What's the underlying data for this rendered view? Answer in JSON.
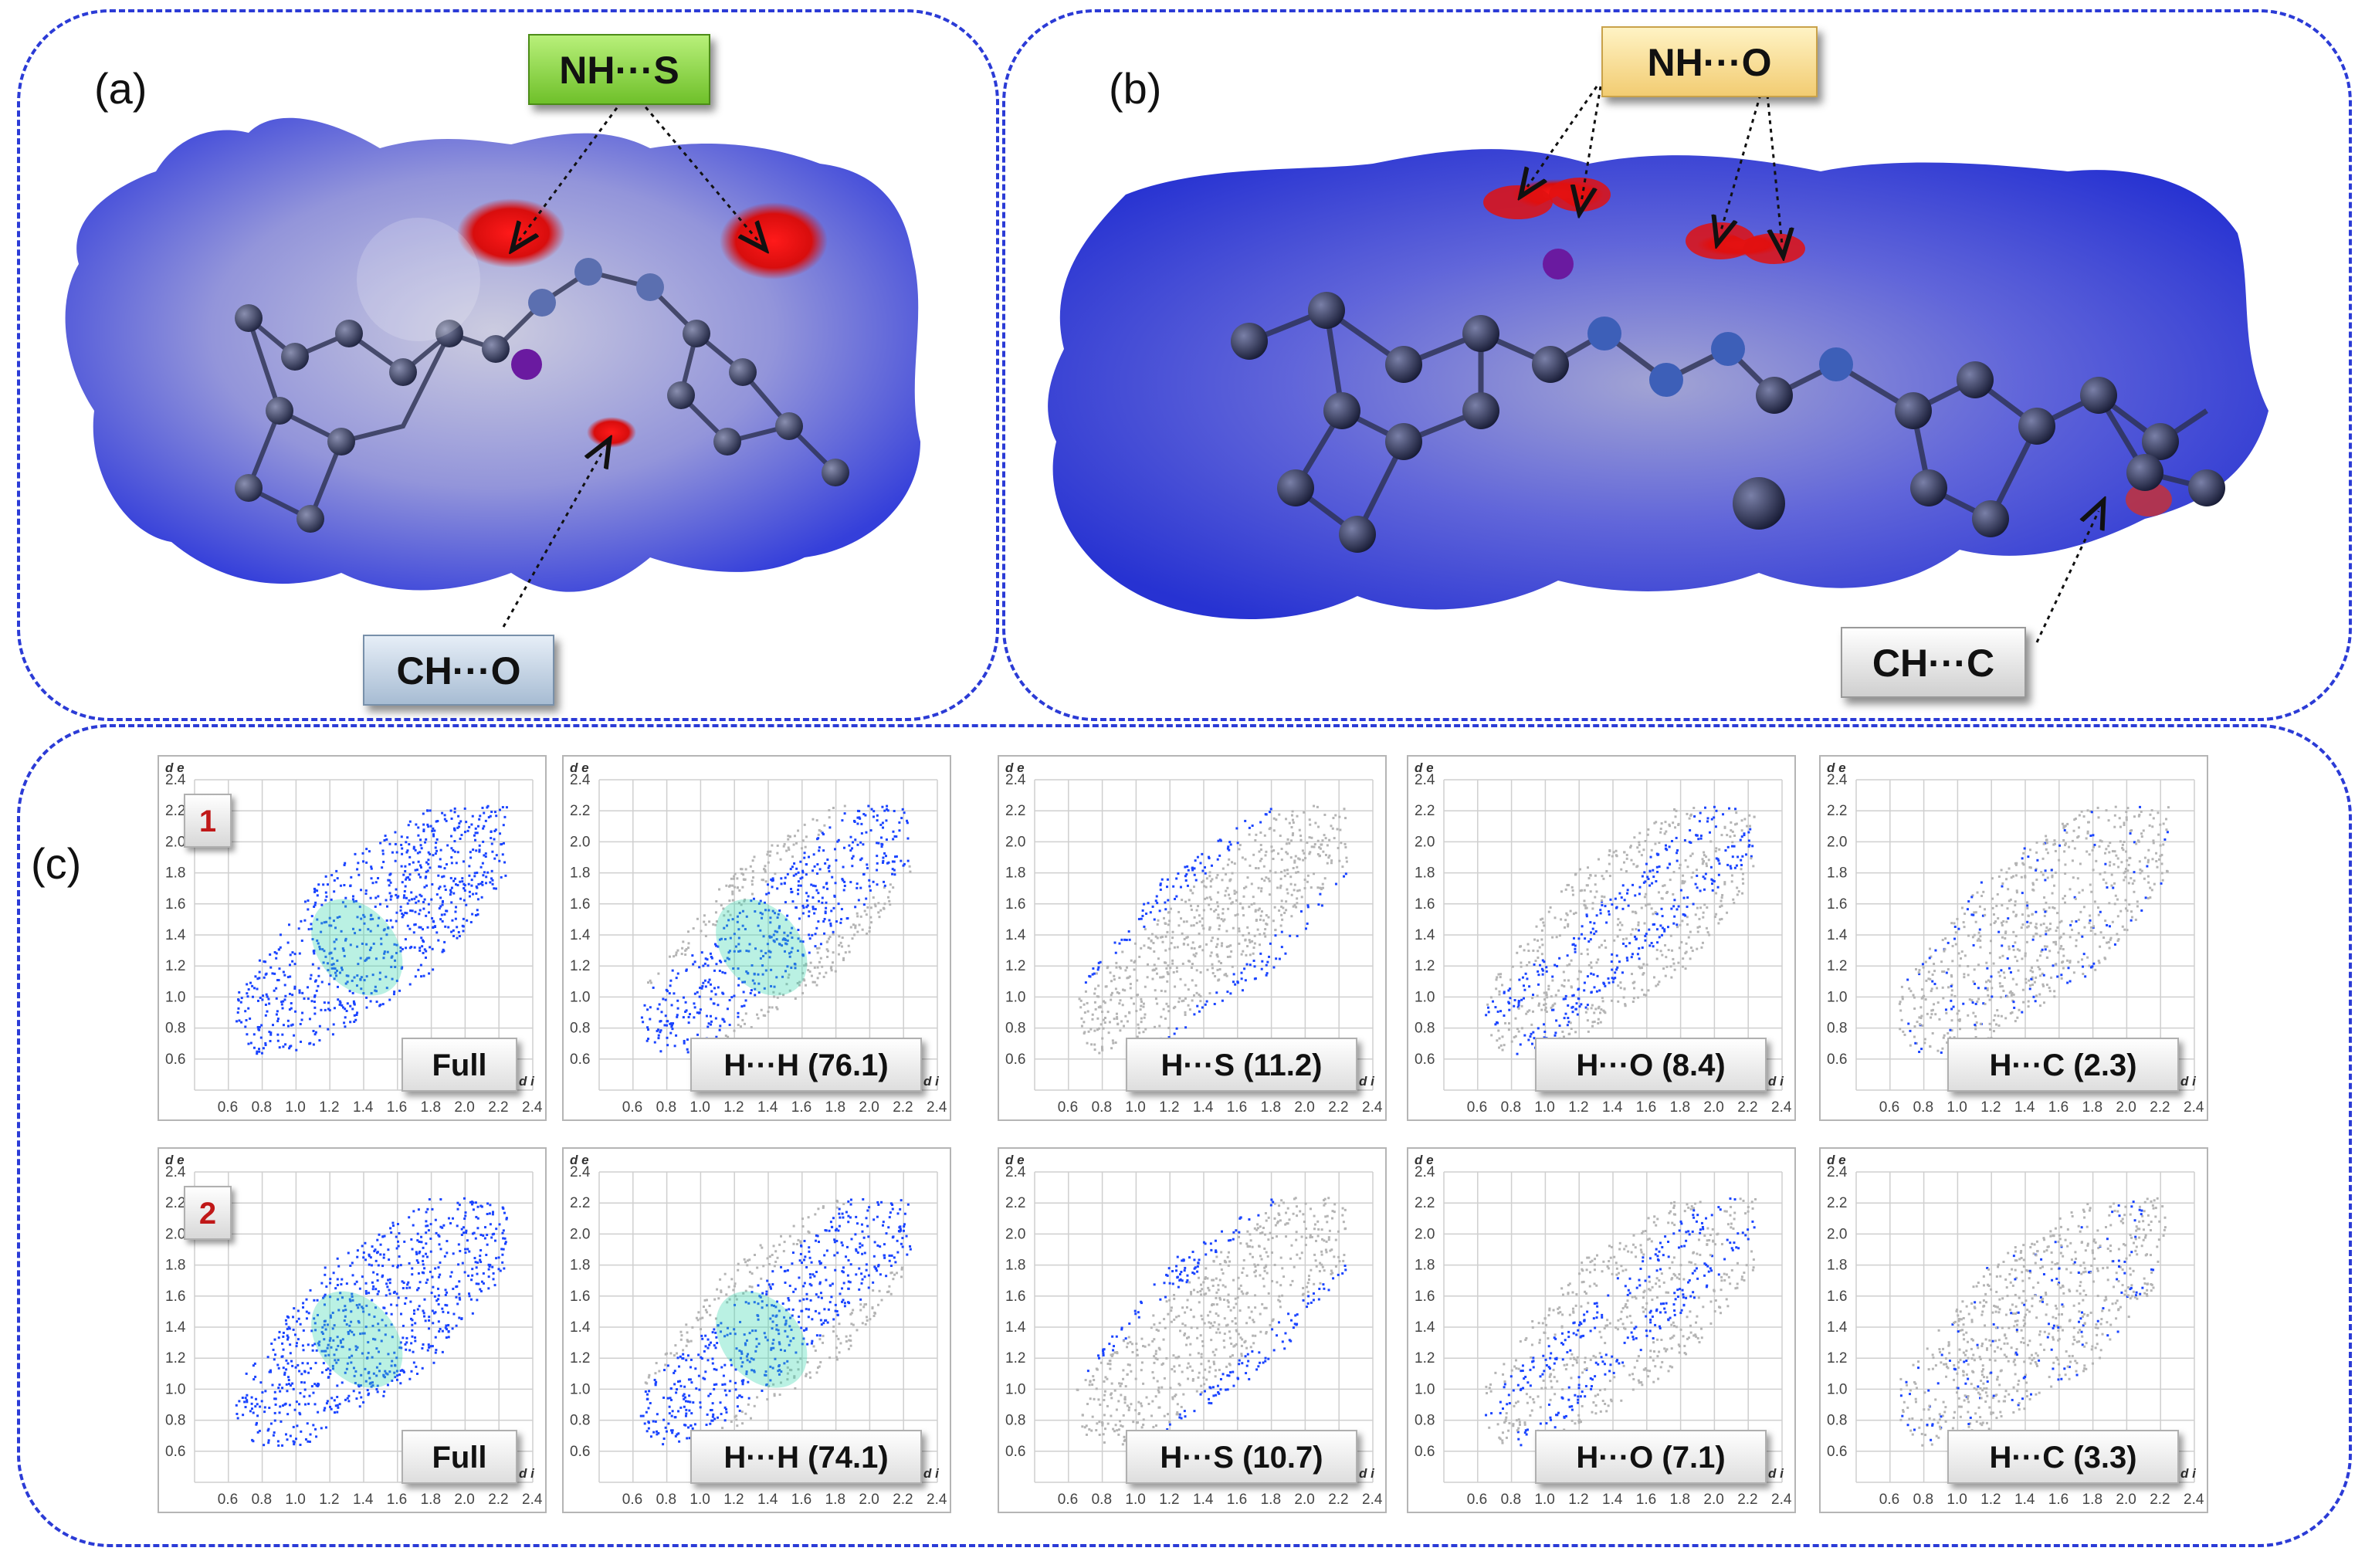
{
  "panels": {
    "a": {
      "label": "(a)",
      "callouts": {
        "top": "NH···S",
        "bottom": "CH···O"
      }
    },
    "b": {
      "label": "(b)",
      "callouts": {
        "top": "NH···O",
        "bottom": "CH···C"
      }
    },
    "c": {
      "label": "(c)",
      "axis": {
        "x_name": "d i",
        "y_name": "d e",
        "x_ticks": [
          "0.6",
          "0.8",
          "1.0",
          "1.2",
          "1.4",
          "1.6",
          "1.8",
          "2.0",
          "2.2",
          "2.4"
        ],
        "y_ticks": [
          "2.4",
          "2.2",
          "2.0",
          "1.8",
          "1.6",
          "1.4",
          "1.2",
          "1.0",
          "0.8",
          "0.6"
        ]
      },
      "rows": [
        {
          "badge": "1",
          "plots": [
            {
              "label": "Full"
            },
            {
              "label": "H···H (76.1)"
            },
            {
              "label": "H···S (11.2)"
            },
            {
              "label": "H···O (8.4)"
            },
            {
              "label": "H···C (2.3)"
            }
          ]
        },
        {
          "badge": "2",
          "plots": [
            {
              "label": "Full"
            },
            {
              "label": "H···H (74.1)"
            },
            {
              "label": "H···S (10.7)"
            },
            {
              "label": "H···O (7.1)"
            },
            {
              "label": "H···C (3.3)"
            }
          ]
        }
      ]
    }
  },
  "colors": {
    "frame": "#2b3bd6",
    "surface_blue": "#2a35d8",
    "contact_red": "#e01010",
    "fingerprint_blue": "#1a44ff",
    "fingerprint_gray": "#b4b4b4"
  }
}
